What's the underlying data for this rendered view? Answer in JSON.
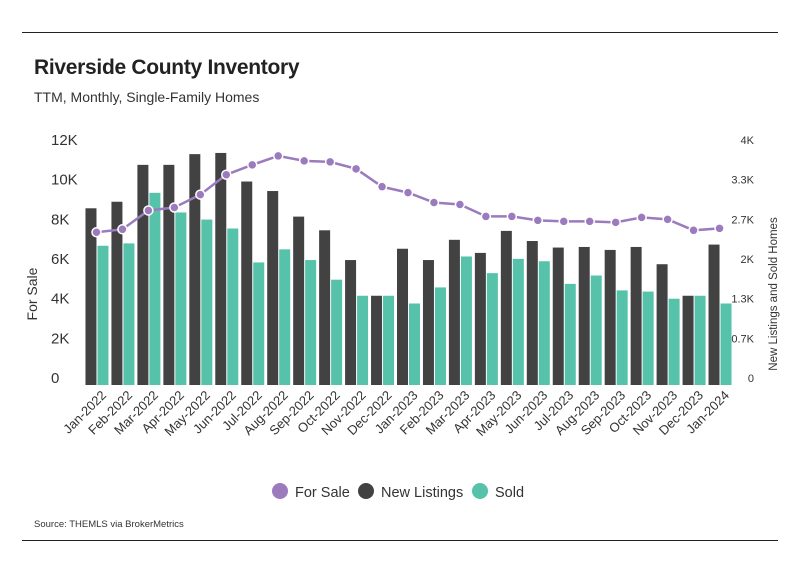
{
  "header": {
    "title": "Riverside County Inventory",
    "subtitle": "TTM, Monthly, Single-Family Homes"
  },
  "footer": {
    "source": "Source:  THEMLS via BrokerMetrics"
  },
  "colors": {
    "for_sale": "#9b7bbd",
    "new_listings": "#424242",
    "sold": "#56c2a9"
  },
  "chart_data": {
    "type": "bar",
    "categories": [
      "Jan-2022",
      "Feb-2022",
      "Mar-2022",
      "Apr-2022",
      "May-2022",
      "Jun-2022",
      "Jul-2022",
      "Aug-2022",
      "Sep-2022",
      "Oct-2022",
      "Nov-2022",
      "Dec-2022",
      "Jan-2023",
      "Feb-2023",
      "Mar-2023",
      "Apr-2023",
      "May-2023",
      "Jun-2023",
      "Jul-2023",
      "Aug-2023",
      "Sep-2023",
      "Oct-2023",
      "Nov-2023",
      "Dec-2023",
      "Jan-2024"
    ],
    "ylabel": "For Sale",
    "y2label": "New Listings and Sold Homes",
    "ylim": [
      0,
      12000
    ],
    "y2lim": [
      0,
      4000
    ],
    "yticks": [
      {
        "value": 0,
        "label": "0"
      },
      {
        "value": 2000,
        "label": "2K"
      },
      {
        "value": 4000,
        "label": "4K"
      },
      {
        "value": 6000,
        "label": "6K"
      },
      {
        "value": 8000,
        "label": "8K"
      },
      {
        "value": 10000,
        "label": "10K"
      },
      {
        "value": 12000,
        "label": "12K"
      }
    ],
    "y2ticks": [
      {
        "value": 0,
        "label": "0"
      },
      {
        "value": 667,
        "label": "0.7K"
      },
      {
        "value": 1333,
        "label": "1.3K"
      },
      {
        "value": 2000,
        "label": "2K"
      },
      {
        "value": 2667,
        "label": "2.7K"
      },
      {
        "value": 3333,
        "label": "3.3K"
      },
      {
        "value": 4000,
        "label": "4K"
      }
    ],
    "series": [
      {
        "name": "For Sale",
        "kind": "line",
        "axis": "left",
        "values": [
          7700,
          7850,
          8800,
          8950,
          9600,
          10600,
          11100,
          11550,
          11300,
          11250,
          10900,
          10000,
          9700,
          9200,
          9100,
          8500,
          8500,
          8300,
          8250,
          8250,
          8200,
          8450,
          8350,
          7800,
          7900
        ]
      },
      {
        "name": "New Listings",
        "kind": "bar",
        "axis": "right",
        "values": [
          2970,
          3080,
          3700,
          3700,
          3880,
          3900,
          3420,
          3260,
          2830,
          2600,
          2100,
          1500,
          2290,
          2100,
          2440,
          2220,
          2590,
          2420,
          2310,
          2320,
          2270,
          2320,
          2030,
          1500,
          2360
        ]
      },
      {
        "name": "Sold",
        "kind": "bar",
        "axis": "right",
        "values": [
          2340,
          2380,
          3230,
          2900,
          2780,
          2630,
          2060,
          2280,
          2100,
          1770,
          1500,
          1500,
          1370,
          1640,
          2160,
          1880,
          2120,
          2080,
          1700,
          1840,
          1590,
          1570,
          1450,
          1500,
          1370
        ]
      }
    ],
    "legend_position": "bottom-center",
    "grid": false
  }
}
